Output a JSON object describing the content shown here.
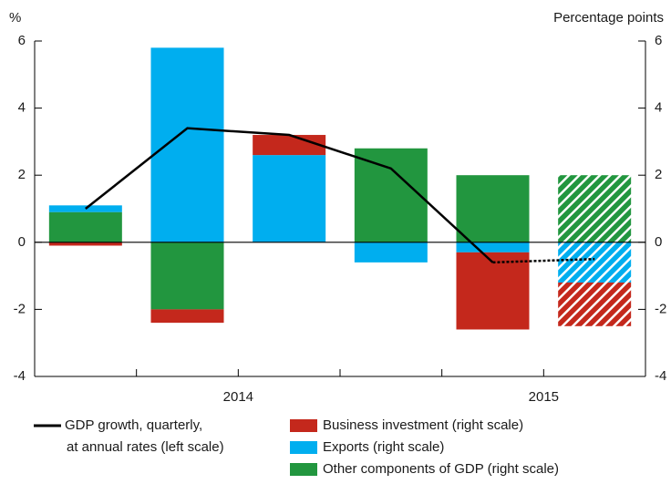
{
  "chart_data": {
    "type": "bar",
    "y_label": "%",
    "y2_label": "Percentage points",
    "categories": [
      null,
      null,
      null,
      null,
      null,
      null
    ],
    "x_groups": [
      {
        "label": "2014",
        "span": 4
      },
      {
        "label": "2015",
        "span": 2
      }
    ],
    "ylim": [
      -4,
      6
    ],
    "yticks": [
      -4,
      -2,
      0,
      2,
      4,
      6
    ],
    "y2lim": [
      -4,
      6
    ],
    "y2ticks": [
      -4,
      -2,
      0,
      2,
      4,
      6
    ],
    "projection_index": 5,
    "series": [
      {
        "name": "Other components of GDP (right scale)",
        "color": "#22963f",
        "axis": "y2",
        "values": [
          0.9,
          -2.0,
          0,
          2.8,
          2.0,
          2.0
        ]
      },
      {
        "name": "Exports (right scale)",
        "color": "#00aeef",
        "axis": "y2",
        "values": [
          0.2,
          5.8,
          2.6,
          -0.6,
          -0.3,
          -1.2
        ]
      },
      {
        "name": "Business investment (right scale)",
        "color": "#c4281c",
        "axis": "y2",
        "values": [
          -0.1,
          -0.4,
          0.6,
          0,
          -2.3,
          -1.3
        ]
      }
    ],
    "line": {
      "name": [
        "GDP growth, quarterly,",
        "at annual rates (left scale)"
      ],
      "color": "#000000",
      "axis": "y",
      "values": [
        1.0,
        3.4,
        3.2,
        2.2,
        -0.6,
        -0.5
      ]
    },
    "legend_order": [
      2,
      1,
      0
    ]
  }
}
